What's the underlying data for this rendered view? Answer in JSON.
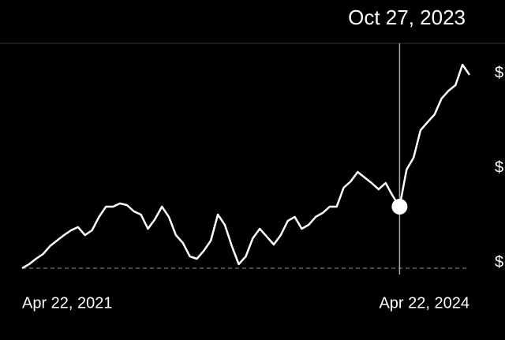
{
  "chart_data": {
    "type": "line",
    "color": "#ffffff",
    "categories": [
      "Apr 22, 2021",
      null,
      null,
      null,
      null,
      null,
      null,
      null,
      null,
      null,
      null,
      null,
      null,
      null,
      null,
      null,
      null,
      null,
      null,
      null,
      null,
      null,
      null,
      null,
      null,
      null,
      null,
      null,
      null,
      null,
      null,
      null,
      null,
      null,
      null,
      null,
      null,
      null,
      null,
      null,
      null,
      null,
      null,
      null,
      null,
      null,
      null,
      null,
      null,
      null,
      null,
      null,
      null,
      null,
      "Oct 27, 2023",
      null,
      null,
      null,
      null,
      null,
      null,
      null,
      null,
      null,
      "Apr 22, 2024"
    ],
    "values": [
      -2.9,
      -0.8,
      2.1,
      4.6,
      8.8,
      11.7,
      14.6,
      17.1,
      18.8,
      14.6,
      17.1,
      24.2,
      29.6,
      29.6,
      31.3,
      30.4,
      27.1,
      25.4,
      17.9,
      22.9,
      29.6,
      24.2,
      14.6,
      10.4,
      3.3,
      2.1,
      6.3,
      11.7,
      25.4,
      20,
      8.8,
      -0.8,
      3.3,
      12.9,
      17.9,
      13.8,
      9.6,
      14.6,
      22.1,
      24.2,
      17.9,
      20,
      24.2,
      26.3,
      29.6,
      29.6,
      39.6,
      42.9,
      47.9,
      45,
      42.1,
      38.8,
      42.1,
      35.4,
      29.6,
      49.2,
      55.4,
      70,
      74.2,
      78.3,
      86.7,
      90.8,
      93.8,
      104.6,
      99.2
    ],
    "ylim": [
      -10,
      110
    ],
    "yticks": [
      {
        "value": 0,
        "label": "$"
      },
      {
        "value": 50,
        "label": "$"
      },
      {
        "value": 100,
        "label": "$"
      }
    ]
  }
}
